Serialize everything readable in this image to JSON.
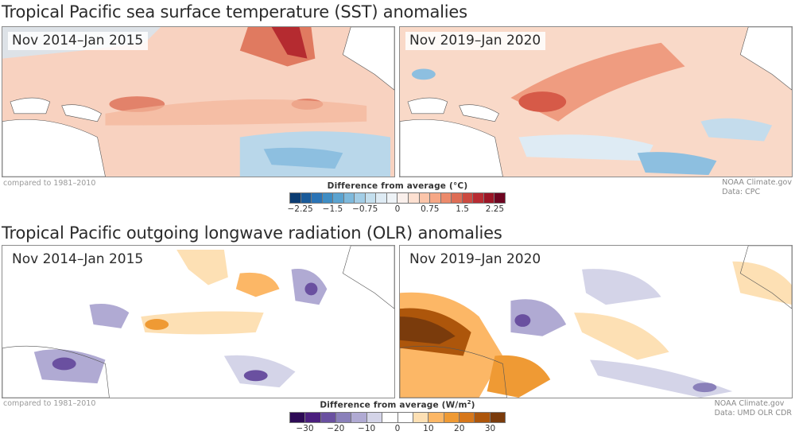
{
  "sst": {
    "title": "Tropical Pacific sea surface temperature (SST) anomalies",
    "panels": [
      {
        "label": "Nov 2014–Jan 2015"
      },
      {
        "label": "Nov 2019–Jan 2020"
      }
    ],
    "baseline_note": "compared to 1981–2010",
    "credit_line1": "NOAA Climate.gov",
    "credit_line2": "Data: CPC",
    "legend": {
      "title": "Difference from average (°C)",
      "range": [
        -2.5,
        2.5
      ],
      "ticks": [
        {
          "value": -2.25,
          "label": "−2.25"
        },
        {
          "value": -1.5,
          "label": "−1.5"
        },
        {
          "value": -0.75,
          "label": "−0.75"
        },
        {
          "value": 0,
          "label": "0"
        },
        {
          "value": 0.75,
          "label": "0.75"
        },
        {
          "value": 1.5,
          "label": "1.5"
        },
        {
          "value": 2.25,
          "label": "2.25"
        }
      ],
      "colors": [
        "#0b3c72",
        "#1a5b9a",
        "#2b74b6",
        "#3f8dc4",
        "#5ba3d0",
        "#7eb9dc",
        "#a2cde6",
        "#c4dfee",
        "#deebf4",
        "#eef3f7",
        "#faf0ec",
        "#fde0d1",
        "#fbc5aa",
        "#f6a786",
        "#ec8a6b",
        "#de6d55",
        "#cc4a40",
        "#b82b32",
        "#9c1526",
        "#6e0521"
      ]
    }
  },
  "olr": {
    "title": "Tropical Pacific outgoing longwave radiation (OLR) anomalies",
    "panels": [
      {
        "label": "Nov 2014–Jan 2015"
      },
      {
        "label": "Nov 2019–Jan 2020"
      }
    ],
    "baseline_note": "compared to 1981–2010",
    "credit_line1": "NOAA Climate.gov",
    "credit_line2": "Data: UMD OLR CDR",
    "legend": {
      "title_prefix": "Difference from average (W/m",
      "title_sup": "2",
      "title_suffix": ")",
      "range": [
        -35,
        35
      ],
      "ticks": [
        {
          "value": -30,
          "label": "−30"
        },
        {
          "value": -20,
          "label": "−20"
        },
        {
          "value": -10,
          "label": "−10"
        },
        {
          "value": 0,
          "label": "0"
        },
        {
          "value": 10,
          "label": "10"
        },
        {
          "value": 20,
          "label": "20"
        },
        {
          "value": 30,
          "label": "30"
        }
      ],
      "colors": [
        "#2d0a55",
        "#4b1f7e",
        "#6a50a0",
        "#8a80ba",
        "#b0aad3",
        "#d4d4e8",
        "#ffffff",
        "#ffffff",
        "#fde0b4",
        "#fcb766",
        "#ef9a34",
        "#d7771a",
        "#ad560b",
        "#7a3b0c"
      ]
    }
  }
}
